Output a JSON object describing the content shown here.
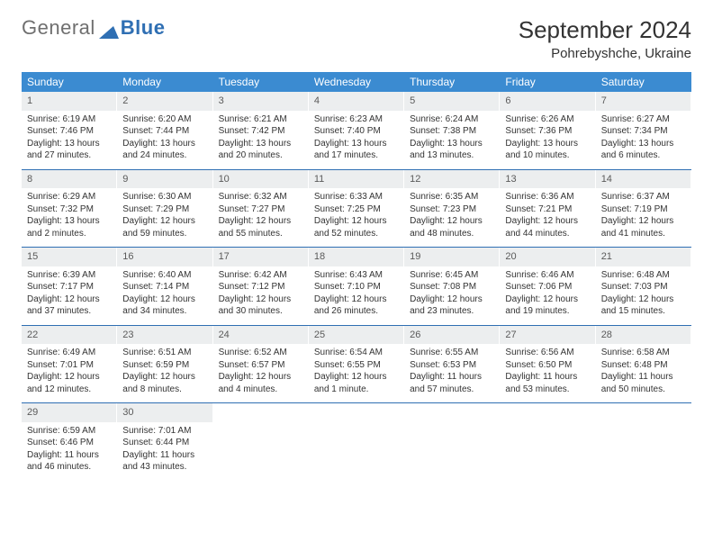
{
  "brand": {
    "part1": "General",
    "part2": "Blue"
  },
  "header": {
    "title": "September 2024",
    "location": "Pohrebyshche, Ukraine"
  },
  "colors": {
    "header_bg": "#3b8bd1",
    "header_text": "#ffffff",
    "daynum_bg": "#eceeef",
    "rule": "#2f6fb3",
    "brand_gray": "#6f6f6f",
    "brand_blue": "#2f6fb3"
  },
  "weekdays": [
    "Sunday",
    "Monday",
    "Tuesday",
    "Wednesday",
    "Thursday",
    "Friday",
    "Saturday"
  ],
  "weeks": [
    [
      {
        "n": "1",
        "sr": "6:19 AM",
        "ss": "7:46 PM",
        "dl": "13 hours and 27 minutes."
      },
      {
        "n": "2",
        "sr": "6:20 AM",
        "ss": "7:44 PM",
        "dl": "13 hours and 24 minutes."
      },
      {
        "n": "3",
        "sr": "6:21 AM",
        "ss": "7:42 PM",
        "dl": "13 hours and 20 minutes."
      },
      {
        "n": "4",
        "sr": "6:23 AM",
        "ss": "7:40 PM",
        "dl": "13 hours and 17 minutes."
      },
      {
        "n": "5",
        "sr": "6:24 AM",
        "ss": "7:38 PM",
        "dl": "13 hours and 13 minutes."
      },
      {
        "n": "6",
        "sr": "6:26 AM",
        "ss": "7:36 PM",
        "dl": "13 hours and 10 minutes."
      },
      {
        "n": "7",
        "sr": "6:27 AM",
        "ss": "7:34 PM",
        "dl": "13 hours and 6 minutes."
      }
    ],
    [
      {
        "n": "8",
        "sr": "6:29 AM",
        "ss": "7:32 PM",
        "dl": "13 hours and 2 minutes."
      },
      {
        "n": "9",
        "sr": "6:30 AM",
        "ss": "7:29 PM",
        "dl": "12 hours and 59 minutes."
      },
      {
        "n": "10",
        "sr": "6:32 AM",
        "ss": "7:27 PM",
        "dl": "12 hours and 55 minutes."
      },
      {
        "n": "11",
        "sr": "6:33 AM",
        "ss": "7:25 PM",
        "dl": "12 hours and 52 minutes."
      },
      {
        "n": "12",
        "sr": "6:35 AM",
        "ss": "7:23 PM",
        "dl": "12 hours and 48 minutes."
      },
      {
        "n": "13",
        "sr": "6:36 AM",
        "ss": "7:21 PM",
        "dl": "12 hours and 44 minutes."
      },
      {
        "n": "14",
        "sr": "6:37 AM",
        "ss": "7:19 PM",
        "dl": "12 hours and 41 minutes."
      }
    ],
    [
      {
        "n": "15",
        "sr": "6:39 AM",
        "ss": "7:17 PM",
        "dl": "12 hours and 37 minutes."
      },
      {
        "n": "16",
        "sr": "6:40 AM",
        "ss": "7:14 PM",
        "dl": "12 hours and 34 minutes."
      },
      {
        "n": "17",
        "sr": "6:42 AM",
        "ss": "7:12 PM",
        "dl": "12 hours and 30 minutes."
      },
      {
        "n": "18",
        "sr": "6:43 AM",
        "ss": "7:10 PM",
        "dl": "12 hours and 26 minutes."
      },
      {
        "n": "19",
        "sr": "6:45 AM",
        "ss": "7:08 PM",
        "dl": "12 hours and 23 minutes."
      },
      {
        "n": "20",
        "sr": "6:46 AM",
        "ss": "7:06 PM",
        "dl": "12 hours and 19 minutes."
      },
      {
        "n": "21",
        "sr": "6:48 AM",
        "ss": "7:03 PM",
        "dl": "12 hours and 15 minutes."
      }
    ],
    [
      {
        "n": "22",
        "sr": "6:49 AM",
        "ss": "7:01 PM",
        "dl": "12 hours and 12 minutes."
      },
      {
        "n": "23",
        "sr": "6:51 AM",
        "ss": "6:59 PM",
        "dl": "12 hours and 8 minutes."
      },
      {
        "n": "24",
        "sr": "6:52 AM",
        "ss": "6:57 PM",
        "dl": "12 hours and 4 minutes."
      },
      {
        "n": "25",
        "sr": "6:54 AM",
        "ss": "6:55 PM",
        "dl": "12 hours and 1 minute."
      },
      {
        "n": "26",
        "sr": "6:55 AM",
        "ss": "6:53 PM",
        "dl": "11 hours and 57 minutes."
      },
      {
        "n": "27",
        "sr": "6:56 AM",
        "ss": "6:50 PM",
        "dl": "11 hours and 53 minutes."
      },
      {
        "n": "28",
        "sr": "6:58 AM",
        "ss": "6:48 PM",
        "dl": "11 hours and 50 minutes."
      }
    ],
    [
      {
        "n": "29",
        "sr": "6:59 AM",
        "ss": "6:46 PM",
        "dl": "11 hours and 46 minutes."
      },
      {
        "n": "30",
        "sr": "7:01 AM",
        "ss": "6:44 PM",
        "dl": "11 hours and 43 minutes."
      },
      null,
      null,
      null,
      null,
      null
    ]
  ],
  "labels": {
    "sunrise_prefix": "Sunrise: ",
    "sunset_prefix": "Sunset: ",
    "daylight_prefix": "Daylight: "
  }
}
